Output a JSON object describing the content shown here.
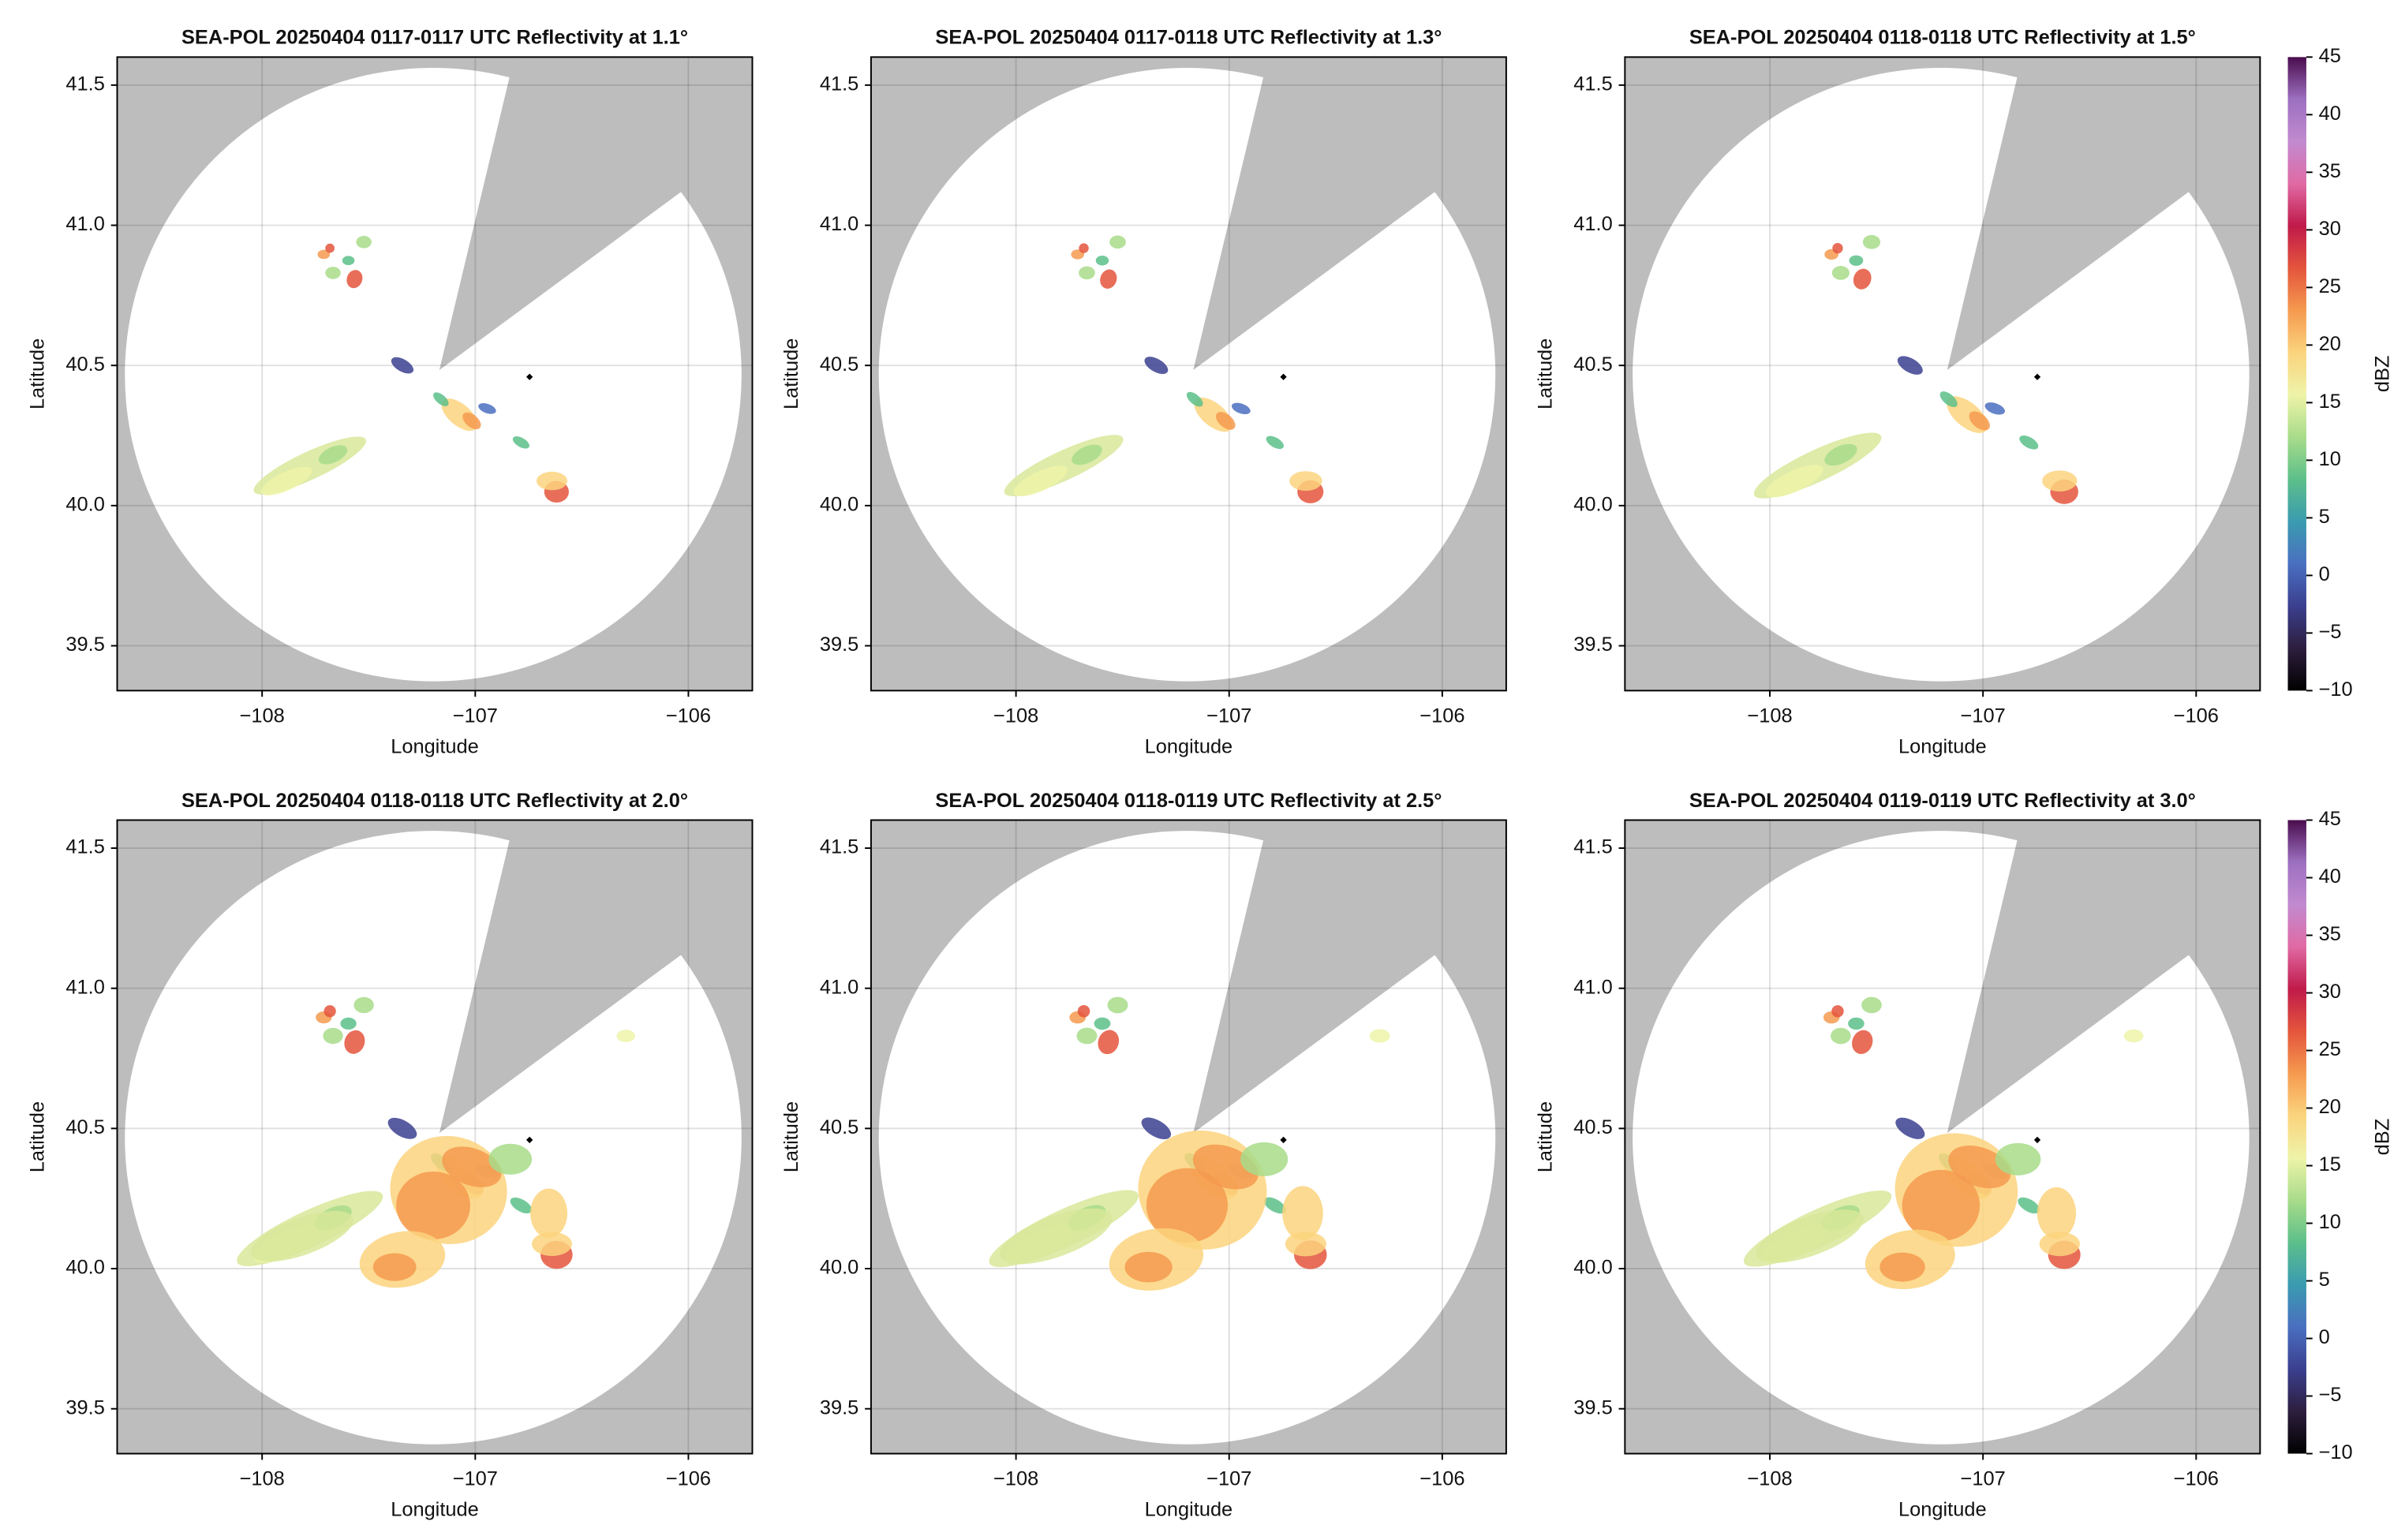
{
  "chart_data": [
    {
      "type": "radar-map",
      "title": "SEA-POL 20250404 0117-0117 UTC Reflectivity at 1.1°",
      "xlabel": "Longitude",
      "ylabel": "Latitude",
      "xlim": [
        -108.68,
        -105.7
      ],
      "ylim": [
        39.34,
        41.6
      ],
      "grid": true,
      "xticks": [
        {
          "value": -108,
          "label": "−108"
        },
        {
          "value": -107,
          "label": "−107"
        },
        {
          "value": -106,
          "label": "−106"
        }
      ],
      "yticks": [
        39.5,
        {
          "value": 40,
          "label": "40.0"
        },
        40.5,
        {
          "value": 41,
          "label": "41.0"
        },
        41.5
      ]
    },
    {
      "type": "radar-map",
      "title": "SEA-POL 20250404 0117-0118 UTC Reflectivity at 1.3°",
      "xlabel": "Longitude",
      "ylabel": "Latitude",
      "xlim": [
        -108.68,
        -105.7
      ],
      "ylim": [
        39.34,
        41.6
      ],
      "grid": true,
      "xticks": [
        {
          "value": -108,
          "label": "−108"
        },
        {
          "value": -107,
          "label": "−107"
        },
        {
          "value": -106,
          "label": "−106"
        }
      ],
      "yticks": [
        39.5,
        {
          "value": 40,
          "label": "40.0"
        },
        40.5,
        {
          "value": 41,
          "label": "41.0"
        },
        41.5
      ]
    },
    {
      "type": "radar-map",
      "title": "SEA-POL 20250404 0118-0118 UTC Reflectivity at 1.5°",
      "xlabel": "Longitude",
      "ylabel": "Latitude",
      "xlim": [
        -108.68,
        -105.7
      ],
      "ylim": [
        39.34,
        41.6
      ],
      "grid": true,
      "xticks": [
        {
          "value": -108,
          "label": "−108"
        },
        {
          "value": -107,
          "label": "−107"
        },
        {
          "value": -106,
          "label": "−106"
        }
      ],
      "yticks": [
        39.5,
        {
          "value": 40,
          "label": "40.0"
        },
        40.5,
        {
          "value": 41,
          "label": "41.0"
        },
        41.5
      ],
      "colorbar": {
        "label": "dBZ",
        "lim": [
          -10,
          45
        ],
        "ticks": [
          {
            "value": -10,
            "label": "−10"
          },
          {
            "value": -5,
            "label": "−5"
          },
          0,
          5,
          10,
          15,
          20,
          25,
          30,
          35,
          40,
          45
        ],
        "colors": [
          "#000000",
          "#2d1e3e",
          "#3b3f8f",
          "#4a6fc0",
          "#3a9bb0",
          "#5cbf8a",
          "#a8dc8a",
          "#eef3a8",
          "#fbd47e",
          "#f59a4f",
          "#e4553c",
          "#c01a4a",
          "#e06aa4",
          "#c28ad0",
          "#9c70c0",
          "#4a0d4e"
        ]
      }
    },
    {
      "type": "radar-map",
      "title": "SEA-POL 20250404 0118-0118 UTC Reflectivity at 2.0°",
      "xlabel": "Longitude",
      "ylabel": "Latitude",
      "xlim": [
        -108.68,
        -105.7
      ],
      "ylim": [
        39.34,
        41.6
      ],
      "grid": true,
      "xticks": [
        {
          "value": -108,
          "label": "−108"
        },
        {
          "value": -107,
          "label": "−107"
        },
        {
          "value": -106,
          "label": "−106"
        }
      ],
      "yticks": [
        39.5,
        {
          "value": 40,
          "label": "40.0"
        },
        40.5,
        {
          "value": 41,
          "label": "41.0"
        },
        41.5
      ]
    },
    {
      "type": "radar-map",
      "title": "SEA-POL 20250404 0118-0119 UTC Reflectivity at 2.5°",
      "xlabel": "Longitude",
      "ylabel": "Latitude",
      "xlim": [
        -108.68,
        -105.7
      ],
      "ylim": [
        39.34,
        41.6
      ],
      "grid": true,
      "xticks": [
        {
          "value": -108,
          "label": "−108"
        },
        {
          "value": -107,
          "label": "−107"
        },
        {
          "value": -106,
          "label": "−106"
        }
      ],
      "yticks": [
        39.5,
        {
          "value": 40,
          "label": "40.0"
        },
        40.5,
        {
          "value": 41,
          "label": "41.0"
        },
        41.5
      ]
    },
    {
      "type": "radar-map",
      "title": "SEA-POL 20250404 0119-0119 UTC Reflectivity at 3.0°",
      "xlabel": "Longitude",
      "ylabel": "Latitude",
      "xlim": [
        -108.68,
        -105.7
      ],
      "ylim": [
        39.34,
        41.6
      ],
      "grid": true,
      "xticks": [
        {
          "value": -108,
          "label": "−108"
        },
        {
          "value": -107,
          "label": "−107"
        },
        {
          "value": -106,
          "label": "−106"
        }
      ],
      "yticks": [
        39.5,
        {
          "value": 40,
          "label": "40.0"
        },
        40.5,
        {
          "value": 41,
          "label": "41.0"
        },
        41.5
      ],
      "colorbar": {
        "label": "dBZ",
        "lim": [
          -10,
          45
        ],
        "ticks": [
          {
            "value": -10,
            "label": "−10"
          },
          {
            "value": -5,
            "label": "−5"
          },
          0,
          5,
          10,
          15,
          20,
          25,
          30,
          35,
          40,
          45
        ],
        "colors": [
          "#000000",
          "#2d1e3e",
          "#3b3f8f",
          "#4a6fc0",
          "#3a9bb0",
          "#5cbf8a",
          "#a8dc8a",
          "#eef3a8",
          "#fbd47e",
          "#f59a4f",
          "#e4553c",
          "#c01a4a",
          "#e06aa4",
          "#c28ad0",
          "#9c70c0",
          "#4a0d4e"
        ]
      }
    }
  ]
}
